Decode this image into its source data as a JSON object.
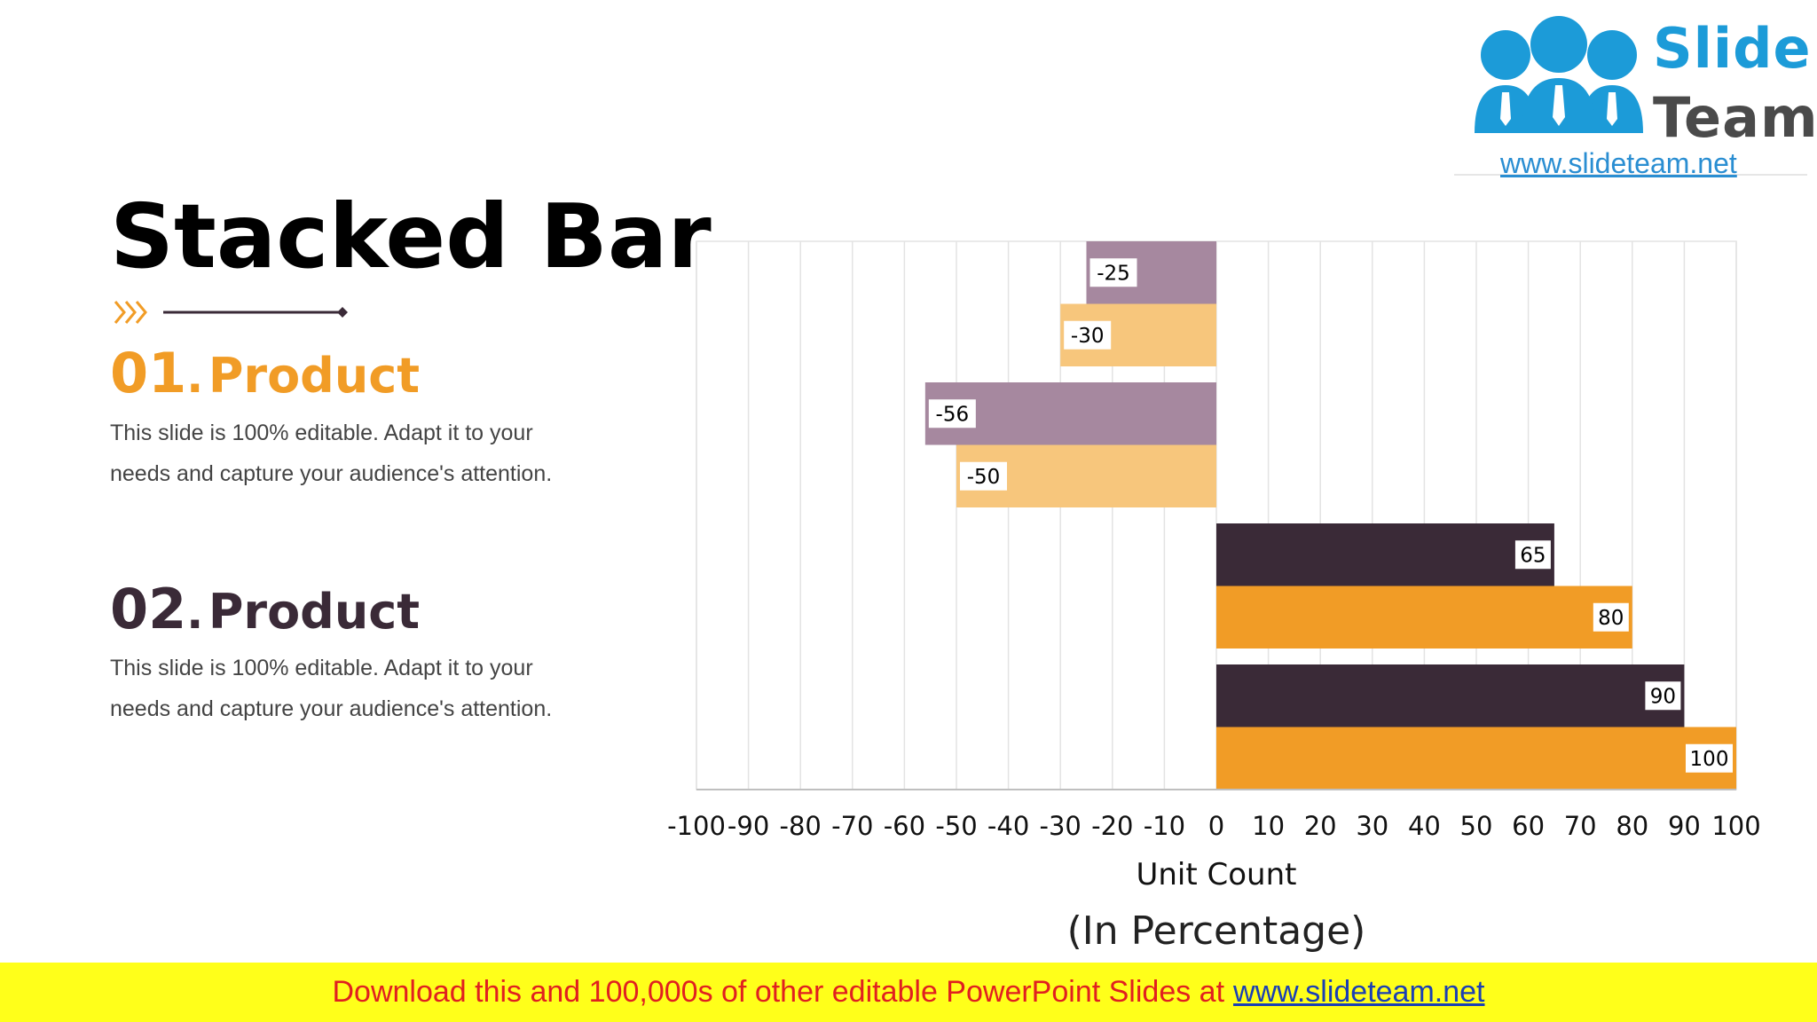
{
  "title": "Stacked Bar",
  "products": [
    {
      "num": "01",
      "dot": ".",
      "name": "Product",
      "desc": "This slide is 100% editable. Adapt it to your needs and capture your audience's attention."
    },
    {
      "num": "02",
      "dot": ".",
      "name": "Product",
      "desc": "This slide is 100% editable. Adapt it to your needs and capture your audience's attention."
    }
  ],
  "logo": {
    "line1": "Slide",
    "line2": "Team",
    "url": "www.slideteam.net"
  },
  "banner": {
    "text": "Download this and 100,000s of other editable PowerPoint Slides at",
    "link": "www.slideteam.net"
  },
  "chart_data": {
    "type": "bar",
    "orientation": "horizontal",
    "xlim": [
      -100,
      100
    ],
    "xticks": [
      -100,
      -90,
      -80,
      -70,
      -60,
      -50,
      -40,
      -30,
      -20,
      -10,
      0,
      10,
      20,
      30,
      40,
      50,
      60,
      70,
      80,
      90,
      100
    ],
    "xlabel": "Unit Count",
    "xlabel2": "(In Percentage)",
    "grid": true,
    "bars": [
      {
        "value": -25,
        "label": "-25",
        "color": "#a6889f"
      },
      {
        "value": -30,
        "label": "-30",
        "color": "#f7c67c"
      },
      {
        "value": -56,
        "label": "-56",
        "color": "#a6889f"
      },
      {
        "value": -50,
        "label": "-50",
        "color": "#f7c67c"
      },
      {
        "value": 65,
        "label": "65",
        "color": "#3a2a37"
      },
      {
        "value": 80,
        "label": "80",
        "color": "#f19c26"
      },
      {
        "value": 90,
        "label": "90",
        "color": "#3a2a37"
      },
      {
        "value": 100,
        "label": "100",
        "color": "#f19c26"
      }
    ]
  }
}
